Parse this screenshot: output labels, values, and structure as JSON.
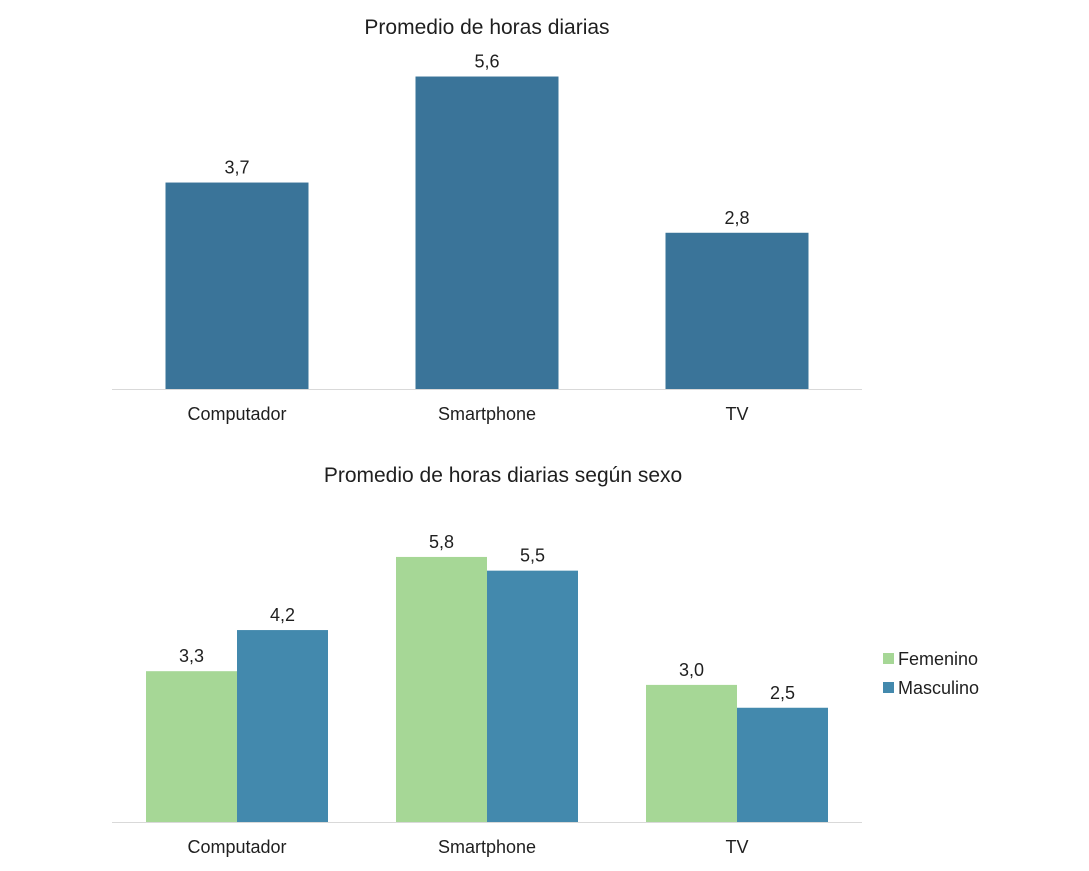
{
  "chart_data": [
    {
      "type": "bar",
      "title": "Promedio de horas diarias",
      "categories": [
        "Computador",
        "Smartphone",
        "TV"
      ],
      "values": [
        3.7,
        5.6,
        2.8
      ],
      "value_labels": [
        "3,7",
        "5,6",
        "2,8"
      ],
      "ylim": [
        0,
        6.5
      ],
      "grid": false,
      "legend": null,
      "colors": {
        "bar": "#3a7499",
        "axis": "#d9d9d9"
      }
    },
    {
      "type": "bar",
      "title": "Promedio de horas diarias según sexo",
      "categories": [
        "Computador",
        "Smartphone",
        "TV"
      ],
      "series": [
        {
          "name": "Femenino",
          "values": [
            3.3,
            5.8,
            3.0
          ],
          "value_labels": [
            "3,3",
            "5,8",
            "3,0"
          ],
          "color": "#a6d796"
        },
        {
          "name": "Masculino",
          "values": [
            4.2,
            5.5,
            2.5
          ],
          "value_labels": [
            "4,2",
            "5,5",
            "2,5"
          ],
          "color": "#4389ad"
        }
      ],
      "ylim": [
        0,
        6.5
      ],
      "grid": false,
      "legend": "right",
      "colors": {
        "axis": "#d9d9d9"
      }
    }
  ]
}
